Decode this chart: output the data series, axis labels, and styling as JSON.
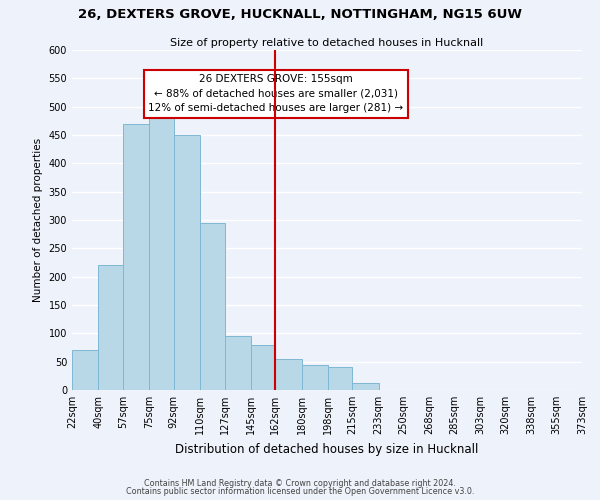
{
  "title": "26, DEXTERS GROVE, HUCKNALL, NOTTINGHAM, NG15 6UW",
  "subtitle": "Size of property relative to detached houses in Hucknall",
  "xlabel": "Distribution of detached houses by size in Hucknall",
  "ylabel": "Number of detached properties",
  "bar_color": "#b8d8e8",
  "bar_edge_color": "#7fb8d4",
  "background_color": "#eef2fa",
  "grid_color": "#ffffff",
  "bin_edges": [
    22,
    40,
    57,
    75,
    92,
    110,
    127,
    145,
    162,
    180,
    198,
    215,
    233,
    250,
    268,
    285,
    303,
    320,
    338,
    355,
    373
  ],
  "bin_labels": [
    "22sqm",
    "40sqm",
    "57sqm",
    "75sqm",
    "92sqm",
    "110sqm",
    "127sqm",
    "145sqm",
    "162sqm",
    "180sqm",
    "198sqm",
    "215sqm",
    "233sqm",
    "250sqm",
    "268sqm",
    "285sqm",
    "303sqm",
    "320sqm",
    "338sqm",
    "355sqm",
    "373sqm"
  ],
  "counts": [
    70,
    220,
    470,
    480,
    450,
    295,
    95,
    80,
    55,
    45,
    40,
    12,
    0,
    0,
    0,
    0,
    0,
    0,
    0,
    0
  ],
  "vline_x": 162,
  "vline_color": "#cc0000",
  "annotation_title": "26 DEXTERS GROVE: 155sqm",
  "annotation_line1": "← 88% of detached houses are smaller (2,031)",
  "annotation_line2": "12% of semi-detached houses are larger (281) →",
  "annotation_box_color": "#ffffff",
  "annotation_box_edge": "#cc0000",
  "ylim": [
    0,
    600
  ],
  "yticks": [
    0,
    50,
    100,
    150,
    200,
    250,
    300,
    350,
    400,
    450,
    500,
    550,
    600
  ],
  "footnote1": "Contains HM Land Registry data © Crown copyright and database right 2024.",
  "footnote2": "Contains public sector information licensed under the Open Government Licence v3.0."
}
